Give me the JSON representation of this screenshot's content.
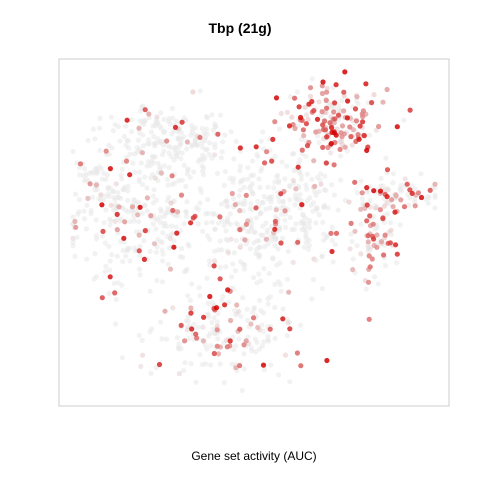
{
  "chart_data": {
    "type": "scatter",
    "title": "Tbp (21g)",
    "xlabel": "Gene set activity (AUC)",
    "ylabel": "",
    "axes_visible": false,
    "grid": false,
    "legend": "none",
    "xlim": [
      0,
      1
    ],
    "ylim": [
      0,
      1
    ],
    "colors": {
      "low": "#e8e8e8",
      "high": "#d40000",
      "frame": "#cccccc"
    },
    "clusters": [
      {
        "name": "top-left",
        "cx": 0.26,
        "cy": 0.78,
        "sx": 0.09,
        "sy": 0.055,
        "n": 180,
        "activity": 0.08
      },
      {
        "name": "left",
        "cx": 0.17,
        "cy": 0.55,
        "sx": 0.09,
        "sy": 0.11,
        "n": 260,
        "activity": 0.07
      },
      {
        "name": "center",
        "cx": 0.46,
        "cy": 0.55,
        "sx": 0.1,
        "sy": 0.11,
        "n": 260,
        "activity": 0.06
      },
      {
        "name": "center-right",
        "cx": 0.62,
        "cy": 0.58,
        "sx": 0.06,
        "sy": 0.1,
        "n": 150,
        "activity": 0.07
      },
      {
        "name": "bottom",
        "cx": 0.43,
        "cy": 0.19,
        "sx": 0.1,
        "sy": 0.07,
        "n": 190,
        "activity": 0.15
      },
      {
        "name": "top-right",
        "cx": 0.71,
        "cy": 0.84,
        "sx": 0.065,
        "sy": 0.06,
        "n": 170,
        "activity": 0.45
      },
      {
        "name": "right",
        "cx": 0.83,
        "cy": 0.5,
        "sx": 0.035,
        "sy": 0.08,
        "n": 90,
        "activity": 0.35
      },
      {
        "name": "far-right",
        "cx": 0.9,
        "cy": 0.62,
        "sx": 0.07,
        "sy": 0.025,
        "n": 70,
        "activity": 0.25
      },
      {
        "name": "far-left",
        "cx": 0.06,
        "cy": 0.67,
        "sx": 0.03,
        "sy": 0.04,
        "n": 25,
        "activity": 0.12
      }
    ]
  }
}
